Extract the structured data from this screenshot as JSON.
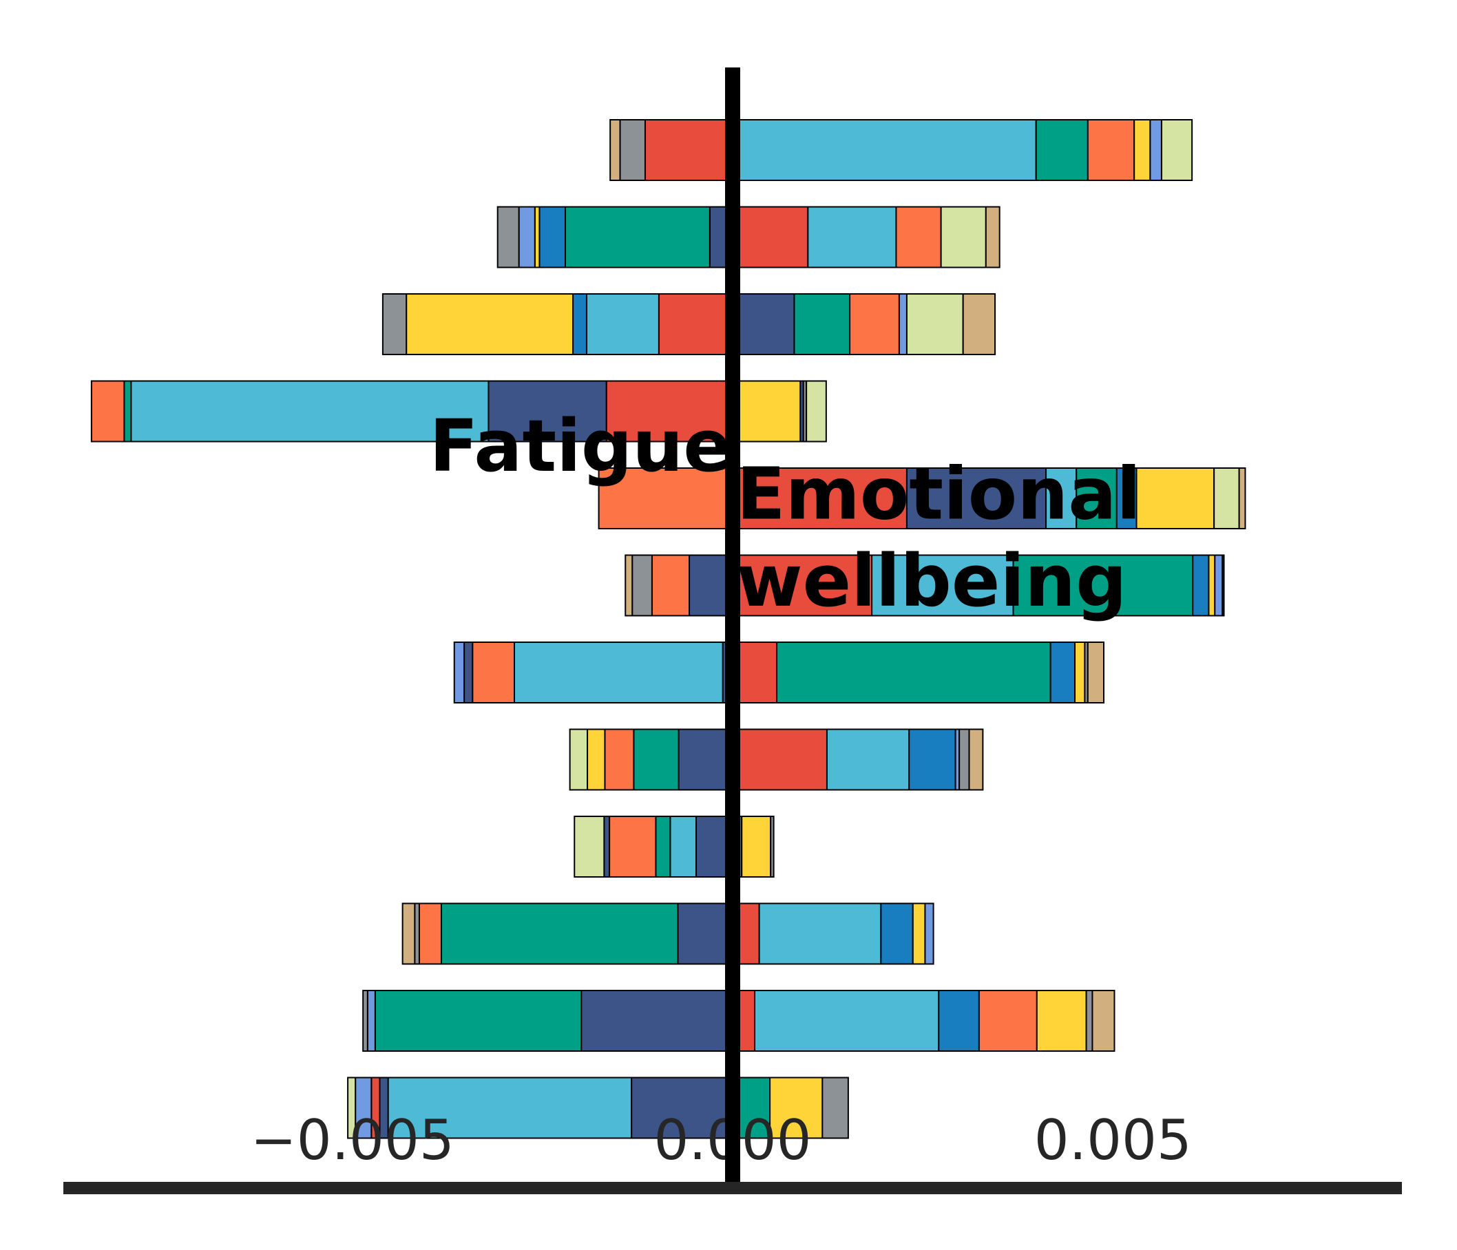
{
  "chart_data": {
    "type": "bar",
    "orientation": "horizontal-stacked-diverging",
    "title": "",
    "xlabel": "",
    "ylabel": "",
    "xlim": [
      -0.0088,
      0.0088
    ],
    "xticks": [
      {
        "value": -0.005,
        "label": "−0.005"
      },
      {
        "value": 0.0,
        "label": "0.000"
      },
      {
        "value": 0.005,
        "label": "0.005"
      }
    ],
    "grid": false,
    "legend": "none",
    "zero_line": true,
    "annotations": [
      {
        "text": "Fatigue",
        "x": -0.002,
        "row": 3.4,
        "anchor": "middle"
      },
      {
        "text": "Emotional",
        "x": 5e-05,
        "row": 3.95,
        "anchor": "start"
      },
      {
        "text": "wellbeing",
        "x": 5e-05,
        "row": 4.95,
        "anchor": "start"
      }
    ],
    "colors": {
      "tan": "#d2af7f",
      "gray": "#8c9296",
      "red": "#e74c3c",
      "cyan": "#4fbad6",
      "teal": "#00a087",
      "orange": "#fd7446",
      "yellow": "#fed439",
      "periwinkle": "#709ae1",
      "lightgreen": "#d5e4a2",
      "blue": "#197ec0",
      "navy": "#3c5488"
    },
    "rows": [
      {
        "negative": [
          [
            "red",
            0.00115
          ],
          [
            "gray",
            0.00033
          ],
          [
            "tan",
            0.00013
          ]
        ],
        "positive": [
          [
            "cyan",
            0.00399
          ],
          [
            "teal",
            0.00068
          ],
          [
            "orange",
            0.00061
          ],
          [
            "yellow",
            0.00021
          ],
          [
            "periwinkle",
            0.00015
          ],
          [
            "lightgreen",
            0.0004
          ]
        ]
      },
      {
        "negative": [
          [
            "navy",
            0.0003
          ],
          [
            "teal",
            0.0019
          ],
          [
            "blue",
            0.00034
          ],
          [
            "yellow",
            6e-05
          ],
          [
            "periwinkle",
            0.00021
          ],
          [
            "gray",
            0.00028
          ]
        ],
        "positive": [
          [
            "red",
            0.00099
          ],
          [
            "cyan",
            0.00116
          ],
          [
            "orange",
            0.00059
          ],
          [
            "lightgreen",
            0.00059
          ],
          [
            "tan",
            0.00018
          ]
        ]
      },
      {
        "negative": [
          [
            "red",
            0.00097
          ],
          [
            "cyan",
            0.00095
          ],
          [
            "blue",
            0.00018
          ],
          [
            "yellow",
            0.00219
          ],
          [
            "gray",
            0.00031
          ]
        ],
        "positive": [
          [
            "navy",
            0.00081
          ],
          [
            "teal",
            0.00073
          ],
          [
            "orange",
            0.00065
          ],
          [
            "periwinkle",
            0.0001
          ],
          [
            "lightgreen",
            0.00074
          ],
          [
            "tan",
            0.00042
          ]
        ]
      },
      {
        "negative": [
          [
            "red",
            0.00166
          ],
          [
            "navy",
            0.00155
          ],
          [
            "cyan",
            0.0047
          ],
          [
            "teal",
            9e-05
          ],
          [
            "orange",
            0.00043
          ]
        ],
        "positive": [
          [
            "yellow",
            0.00089
          ],
          [
            "navy",
            4e-05
          ],
          [
            "gray",
            4e-05
          ],
          [
            "lightgreen",
            0.00026
          ]
        ]
      },
      {
        "negative": [
          [
            "orange",
            0.00176
          ]
        ],
        "positive": [
          [
            "red",
            0.00229
          ],
          [
            "navy",
            0.00183
          ],
          [
            "cyan",
            0.0004
          ],
          [
            "teal",
            0.00053
          ],
          [
            "blue",
            0.00026
          ],
          [
            "yellow",
            0.00102
          ],
          [
            "lightgreen",
            0.00033
          ],
          [
            "tan",
            8e-05
          ]
        ]
      },
      {
        "negative": [
          [
            "navy",
            0.00057
          ],
          [
            "orange",
            0.00049
          ],
          [
            "gray",
            0.00026
          ],
          [
            "tan",
            9e-05
          ]
        ],
        "positive": [
          [
            "red",
            0.00183
          ],
          [
            "cyan",
            0.00186
          ],
          [
            "teal",
            0.00236
          ],
          [
            "blue",
            0.00021
          ],
          [
            "yellow",
            8e-05
          ],
          [
            "periwinkle",
            0.0001
          ],
          [
            "navy",
            2e-05
          ]
        ]
      },
      {
        "negative": [
          [
            "navy",
            0.00013
          ],
          [
            "cyan",
            0.00274
          ],
          [
            "orange",
            0.00055
          ],
          [
            "navy",
            0.00011
          ],
          [
            "periwinkle",
            0.00013
          ]
        ],
        "positive": [
          [
            "red",
            0.00058
          ],
          [
            "teal",
            0.0036
          ],
          [
            "blue",
            0.00032
          ],
          [
            "yellow",
            0.00013
          ],
          [
            "gray",
            4e-05
          ],
          [
            "tan",
            0.00021
          ]
        ]
      },
      {
        "negative": [
          [
            "navy",
            0.00071
          ],
          [
            "teal",
            0.00059
          ],
          [
            "orange",
            0.00038
          ],
          [
            "yellow",
            0.00023
          ],
          [
            "lightgreen",
            0.00023
          ]
        ],
        "positive": [
          [
            "red",
            0.00124
          ],
          [
            "cyan",
            0.00108
          ],
          [
            "blue",
            0.00061
          ],
          [
            "periwinkle",
            5e-05
          ],
          [
            "gray",
            0.00013
          ],
          [
            "tan",
            0.00018
          ]
        ]
      },
      {
        "negative": [
          [
            "navy",
            0.00048
          ],
          [
            "cyan",
            0.00034
          ],
          [
            "teal",
            0.00019
          ],
          [
            "orange",
            0.00061
          ],
          [
            "navy",
            7e-05
          ],
          [
            "lightgreen",
            0.00039
          ]
        ],
        "positive": [
          [
            "blue",
            0.00012
          ],
          [
            "yellow",
            0.00038
          ],
          [
            "gray",
            4e-05
          ]
        ]
      },
      {
        "negative": [
          [
            "navy",
            0.00072
          ],
          [
            "teal",
            0.00311
          ],
          [
            "orange",
            0.00029
          ],
          [
            "gray",
            6e-05
          ],
          [
            "tan",
            0.00016
          ]
        ],
        "positive": [
          [
            "red",
            0.00035
          ],
          [
            "cyan",
            0.0016
          ],
          [
            "blue",
            0.00042
          ],
          [
            "yellow",
            0.00016
          ],
          [
            "periwinkle",
            0.00011
          ]
        ]
      },
      {
        "negative": [
          [
            "navy",
            0.00199
          ],
          [
            "teal",
            0.00271
          ],
          [
            "periwinkle",
            0.0001
          ],
          [
            "gray",
            6e-05
          ]
        ],
        "positive": [
          [
            "red",
            0.00029
          ],
          [
            "cyan",
            0.00242
          ],
          [
            "blue",
            0.00053
          ],
          [
            "orange",
            0.00076
          ],
          [
            "yellow",
            0.00065
          ],
          [
            "gray",
            8e-05
          ],
          [
            "tan",
            0.00029
          ]
        ]
      },
      {
        "negative": [
          [
            "navy",
            0.00133
          ],
          [
            "cyan",
            0.0032
          ],
          [
            "navy",
            0.00011
          ],
          [
            "red",
            0.00011
          ],
          [
            "periwinkle",
            0.00021
          ],
          [
            "lightgreen",
            0.0001
          ]
        ],
        "positive": [
          [
            "teal",
            0.00049
          ],
          [
            "yellow",
            0.00069
          ],
          [
            "gray",
            0.00034
          ]
        ]
      }
    ]
  }
}
